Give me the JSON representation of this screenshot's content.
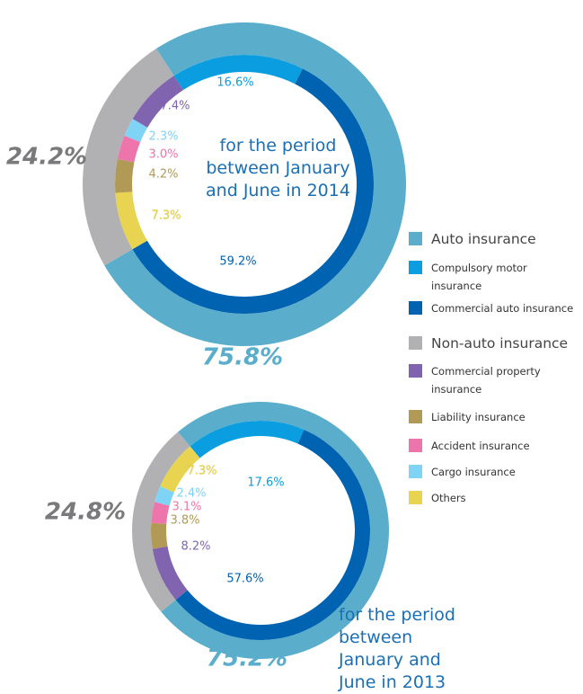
{
  "chart_data": {
    "type": "donut",
    "outer_categories": [
      "Auto insurance",
      "Non-auto insurance"
    ],
    "outer_colors": [
      "#5aaecc",
      "#b1b1b3"
    ],
    "inner_categories": [
      "Compulsory motor insurance",
      "Commercial auto insurance",
      "Commercial property insurance",
      "Liability insurance",
      "Accident insurance",
      "Cargo insurance",
      "Others"
    ],
    "inner_colors": [
      "#0a9ee0",
      "#0063b1",
      "#8064b0",
      "#b09a55",
      "#ee75ab",
      "#7fd3f5",
      "#e8d451"
    ],
    "panels": [
      {
        "subtitle": "for the period between January and June in 2014",
        "outer_values": [
          75.8,
          24.2
        ],
        "outer_value_labels": [
          "75.8%",
          "24.2%"
        ],
        "inner_values": [
          16.6,
          59.2,
          7.4,
          4.2,
          3.0,
          2.3,
          7.3
        ],
        "inner_value_labels": [
          "16.6%",
          "59.2%",
          "7.4%",
          "4.2%",
          "3.0%",
          "2.3%",
          "7.3%"
        ]
      },
      {
        "subtitle": "for the period between January and June in 2013",
        "outer_values": [
          75.2,
          24.8
        ],
        "outer_value_labels": [
          "75.2%",
          "24.8%"
        ],
        "inner_values": [
          17.6,
          57.6,
          8.2,
          3.8,
          3.1,
          2.4,
          7.3
        ],
        "inner_value_labels": [
          "17.6%",
          "57.6%",
          "8.2%",
          "3.8%",
          "3.1%",
          "2.4%",
          "7.3%"
        ]
      }
    ]
  }
}
